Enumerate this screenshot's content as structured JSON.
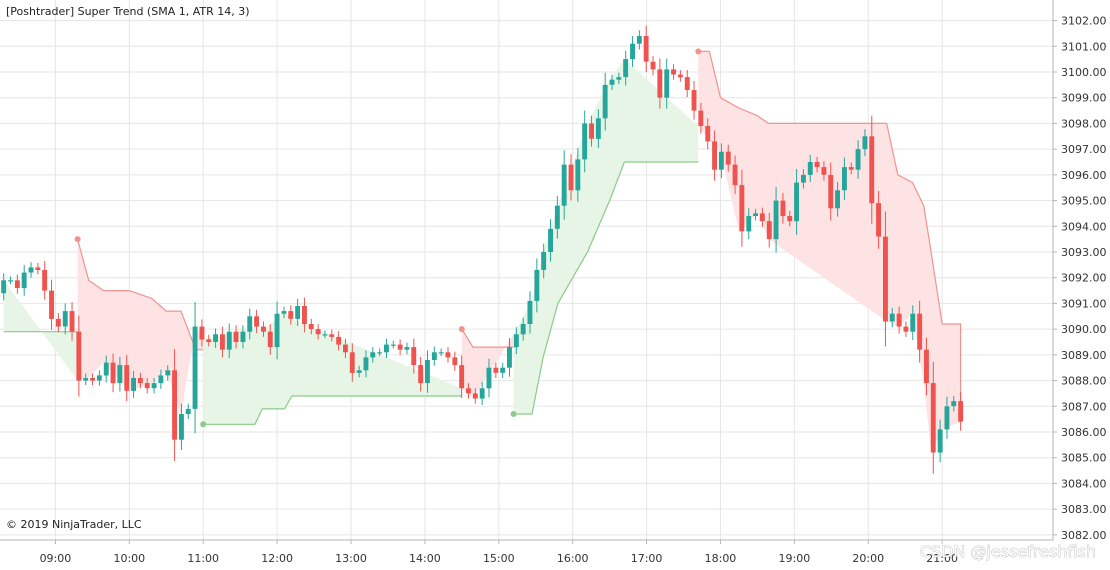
{
  "chart_data": {
    "type": "candlestick",
    "title": "[Poshtrader] Super Trend (SMA 1, ATR 14, 3)",
    "copyright": "© 2019 NinjaTrader, LLC",
    "watermark": "CSDN @jessefreshfish",
    "ylim": [
      3081.8,
      3102.8
    ],
    "xlim_hours": [
      8.25,
      22.5
    ],
    "grid": true,
    "y_axis_position": "right",
    "y_ticks": [
      "3082.00",
      "3083.00",
      "3084.00",
      "3085.00",
      "3086.00",
      "3087.00",
      "3088.00",
      "3089.00",
      "3090.00",
      "3091.00",
      "3092.00",
      "3093.00",
      "3094.00",
      "3095.00",
      "3096.00",
      "3097.00",
      "3098.00",
      "3099.00",
      "3100.00",
      "3101.00",
      "3102.00"
    ],
    "x_ticks": [
      {
        "label": "09:00",
        "hour": 9
      },
      {
        "label": "10:00",
        "hour": 10
      },
      {
        "label": "11:00",
        "hour": 11
      },
      {
        "label": "12:00",
        "hour": 12
      },
      {
        "label": "13:00",
        "hour": 13
      },
      {
        "label": "14:00",
        "hour": 14
      },
      {
        "label": "15:00",
        "hour": 15
      },
      {
        "label": "16:00",
        "hour": 16
      },
      {
        "label": "17:00",
        "hour": 17
      },
      {
        "label": "18:00",
        "hour": 18
      },
      {
        "label": "19:00",
        "hour": 19
      },
      {
        "label": "20:00",
        "hour": 20
      },
      {
        "label": "21:00",
        "hour": 21
      }
    ],
    "colors": {
      "up": "#26a69a",
      "down": "#ef5350",
      "bull_fill": "#e7f5e7",
      "bull_line": "#88cc88",
      "bear_fill": "#fde3e3",
      "bear_line": "#f0948f",
      "grid": "#e6e6e6"
    },
    "open_values": [
      3091.4,
      3091.9,
      3091.9,
      3091.6,
      3092.2,
      3092.4,
      3092.3,
      3091.5,
      3090.4,
      3090.1,
      3090.7,
      3089.9,
      3088.0,
      3088.1,
      3088.0,
      3088.2,
      3088.7,
      3087.9,
      3088.6,
      3087.6,
      3088.1,
      3087.9,
      3087.7,
      3087.9,
      3088.2,
      3088.4,
      3085.7,
      3086.7,
      3086.9,
      3090.1,
      3089.6,
      3089.5,
      3089.8,
      3089.2,
      3089.9,
      3089.5,
      3089.9,
      3090.5,
      3090.1,
      3089.9,
      3089.3,
      3090.6,
      3090.7,
      3090.4,
      3090.9,
      3090.2,
      3090.0,
      3089.8,
      3089.8,
      3089.7,
      3089.4,
      3089.1,
      3088.3,
      3088.4,
      3088.9,
      3089.1,
      3089.1,
      3089.4,
      3089.4,
      3089.2,
      3089.3,
      3088.6,
      3087.9,
      3088.8,
      3089.1,
      3089.1,
      3088.9,
      3088.6,
      3087.7,
      3087.5,
      3087.3,
      3087.7,
      3088.5,
      3088.3,
      3088.5,
      3089.3,
      3089.8,
      3090.2,
      3091.1,
      3092.3,
      3093.0,
      3093.9,
      3094.8,
      3096.4,
      3095.4,
      3096.6,
      3098.0,
      3097.4,
      3098.2,
      3099.5,
      3099.7,
      3099.8,
      3100.5,
      3101.1,
      3101.4,
      3100.4,
      3100.1,
      3099.0,
      3100.1,
      3099.9,
      3099.8,
      3099.3,
      3098.5,
      3097.9,
      3097.3,
      3096.2,
      3096.9,
      3096.4,
      3095.6,
      3093.8,
      3094.4,
      3094.5,
      3094.2,
      3093.5,
      3095.0,
      3094.4,
      3094.2,
      3095.7,
      3096.0,
      3096.5,
      3096.3,
      3096.0,
      3094.7,
      3095.4,
      3096.3,
      3096.2,
      3097.0,
      3097.5,
      3094.9,
      3093.6,
      3090.3,
      3090.6,
      3090.1,
      3089.9,
      3090.6,
      3089.2,
      3087.9,
      3085.2,
      3086.1,
      3087.0,
      3087.2
    ],
    "close_values": [
      3091.9,
      3091.9,
      3091.6,
      3092.2,
      3092.4,
      3092.3,
      3091.5,
      3090.4,
      3090.1,
      3090.7,
      3089.9,
      3088.0,
      3088.1,
      3088.0,
      3088.2,
      3088.7,
      3087.9,
      3088.6,
      3087.6,
      3088.1,
      3087.9,
      3087.7,
      3087.9,
      3088.2,
      3088.4,
      3085.7,
      3086.7,
      3086.9,
      3090.1,
      3089.6,
      3089.5,
      3089.8,
      3089.2,
      3089.9,
      3089.5,
      3089.9,
      3090.5,
      3090.1,
      3089.9,
      3089.3,
      3090.6,
      3090.7,
      3090.4,
      3090.9,
      3090.2,
      3090.0,
      3089.8,
      3089.8,
      3089.7,
      3089.4,
      3089.1,
      3088.3,
      3088.4,
      3088.9,
      3089.1,
      3089.1,
      3089.4,
      3089.4,
      3089.2,
      3089.3,
      3088.6,
      3087.9,
      3088.8,
      3089.1,
      3089.1,
      3088.9,
      3088.6,
      3087.7,
      3087.5,
      3087.3,
      3087.7,
      3088.5,
      3088.3,
      3088.5,
      3089.3,
      3089.8,
      3090.2,
      3091.1,
      3092.3,
      3093.0,
      3093.9,
      3094.8,
      3096.4,
      3095.4,
      3096.6,
      3098.0,
      3097.4,
      3098.2,
      3099.5,
      3099.7,
      3099.8,
      3100.5,
      3101.1,
      3101.4,
      3100.4,
      3100.1,
      3099.0,
      3100.1,
      3099.9,
      3099.8,
      3099.3,
      3098.5,
      3097.9,
      3097.3,
      3096.2,
      3096.9,
      3096.4,
      3095.6,
      3093.8,
      3094.4,
      3094.5,
      3094.2,
      3093.5,
      3095.0,
      3094.4,
      3094.2,
      3095.7,
      3096.0,
      3096.5,
      3096.3,
      3096.0,
      3094.7,
      3095.4,
      3096.3,
      3096.2,
      3097.0,
      3097.5,
      3094.9,
      3093.6,
      3090.3,
      3090.6,
      3090.1,
      3089.9,
      3090.6,
      3089.2,
      3087.9,
      3085.2,
      3086.1,
      3087.0,
      3087.2,
      3086.4
    ],
    "supertrend_segments": [
      {
        "trend": "up",
        "points": [
          [
            8.3,
            3089.9
          ],
          [
            9.3,
            3089.9
          ]
        ]
      },
      {
        "trend": "down",
        "points": [
          [
            9.3,
            3093.5
          ],
          [
            9.45,
            3091.9
          ],
          [
            9.65,
            3091.5
          ],
          [
            10.0,
            3091.5
          ],
          [
            10.3,
            3091.2
          ],
          [
            10.5,
            3090.7
          ],
          [
            10.7,
            3090.7
          ],
          [
            10.9,
            3089.2
          ],
          [
            11.0,
            3089.2
          ]
        ]
      },
      {
        "trend": "up",
        "points": [
          [
            11.0,
            3086.3
          ],
          [
            11.7,
            3086.3
          ],
          [
            11.8,
            3086.9
          ],
          [
            12.1,
            3086.9
          ],
          [
            12.2,
            3087.4
          ],
          [
            14.5,
            3087.4
          ]
        ]
      },
      {
        "trend": "down",
        "points": [
          [
            14.5,
            3090.0
          ],
          [
            14.65,
            3089.3
          ],
          [
            15.2,
            3089.3
          ]
        ]
      },
      {
        "trend": "up",
        "points": [
          [
            15.2,
            3086.7
          ],
          [
            15.45,
            3086.7
          ],
          [
            15.6,
            3088.9
          ],
          [
            15.8,
            3091.0
          ],
          [
            16.2,
            3093.0
          ],
          [
            16.5,
            3095.0
          ],
          [
            16.7,
            3096.5
          ],
          [
            17.7,
            3096.5
          ]
        ]
      },
      {
        "trend": "down",
        "points": [
          [
            17.7,
            3100.8
          ],
          [
            17.85,
            3100.8
          ],
          [
            18.0,
            3099.0
          ],
          [
            18.25,
            3098.6
          ],
          [
            18.5,
            3098.3
          ],
          [
            18.65,
            3098.0
          ],
          [
            20.25,
            3098.0
          ],
          [
            20.4,
            3096.0
          ],
          [
            20.6,
            3095.7
          ],
          [
            20.75,
            3094.8
          ],
          [
            20.85,
            3093.0
          ],
          [
            21.0,
            3090.2
          ],
          [
            21.25,
            3090.2
          ],
          [
            21.25,
            3086.8
          ]
        ]
      }
    ]
  }
}
